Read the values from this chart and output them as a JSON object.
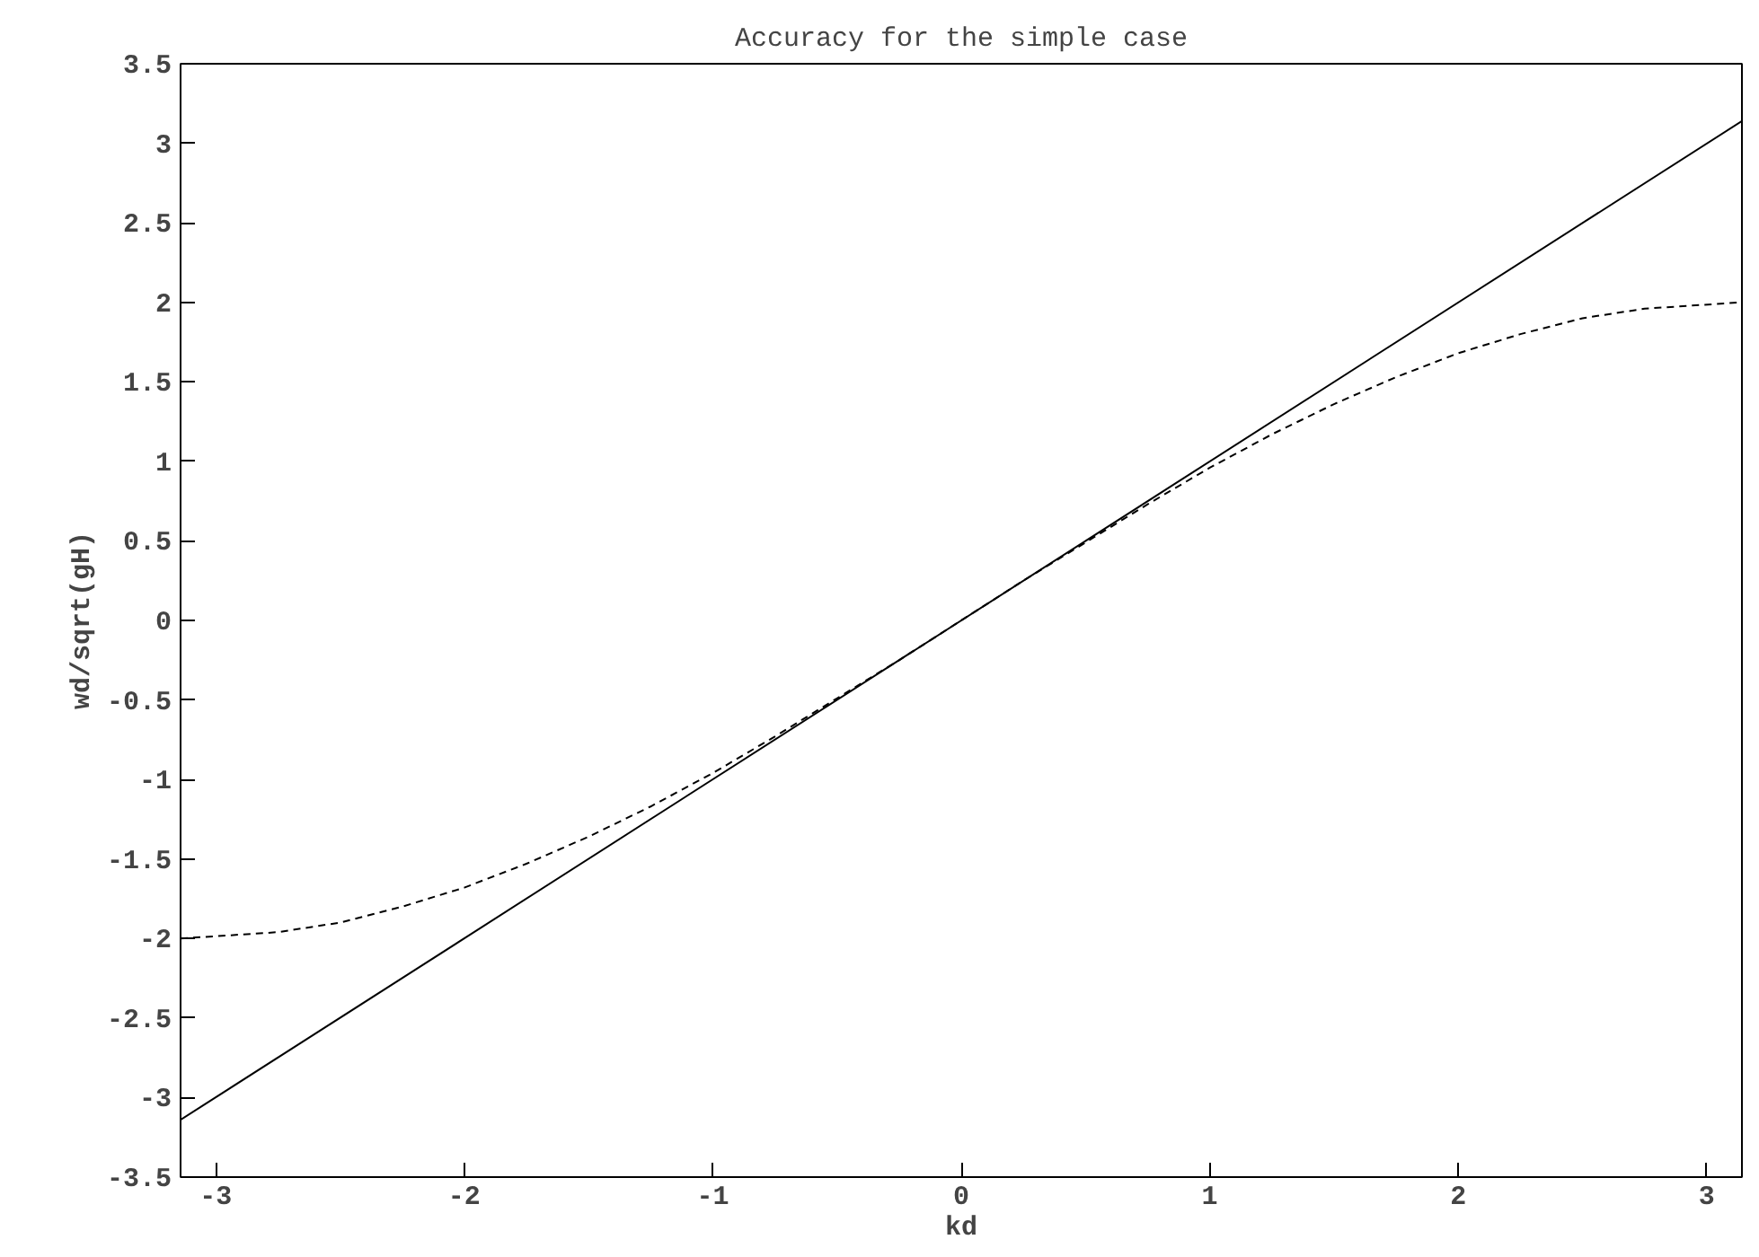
{
  "chart_data": {
    "type": "line",
    "title": "Accuracy for the simple case",
    "xlabel": "kd",
    "ylabel": "wd/sqrt(gH)",
    "xlim": [
      -3.1416,
      3.1416
    ],
    "xticks": [
      -3,
      -2,
      -1,
      0,
      1,
      2,
      3
    ],
    "ylim": [
      -3.5,
      3.5
    ],
    "yticks": [
      -3.5,
      -3,
      -2.5,
      -2,
      -1.5,
      -1,
      -0.5,
      0,
      0.5,
      1,
      1.5,
      2,
      2.5,
      3,
      3.5
    ],
    "grid": false,
    "series": [
      {
        "color": "#000000",
        "line_style": "solid",
        "x": [
          -3.1416,
          3.1416
        ],
        "values": [
          -3.14,
          3.14
        ]
      },
      {
        "color": "#000000",
        "line_style": "dashed",
        "x": [
          -3.1416,
          -2.75,
          -2.5,
          -2.25,
          -2,
          -1.75,
          -1.5,
          -1.25,
          -1,
          -0.75,
          -0.5,
          -0.25,
          0,
          0.25,
          0.5,
          0.75,
          1,
          1.25,
          1.5,
          1.75,
          2,
          2.25,
          2.5,
          2.75,
          3.1416
        ],
        "values": [
          -2.0,
          -1.96,
          -1.9,
          -1.8,
          -1.68,
          -1.53,
          -1.36,
          -1.17,
          -0.96,
          -0.73,
          -0.49,
          -0.25,
          0,
          0.25,
          0.49,
          0.73,
          0.96,
          1.17,
          1.36,
          1.53,
          1.68,
          1.8,
          1.9,
          1.96,
          2.0
        ]
      }
    ]
  }
}
